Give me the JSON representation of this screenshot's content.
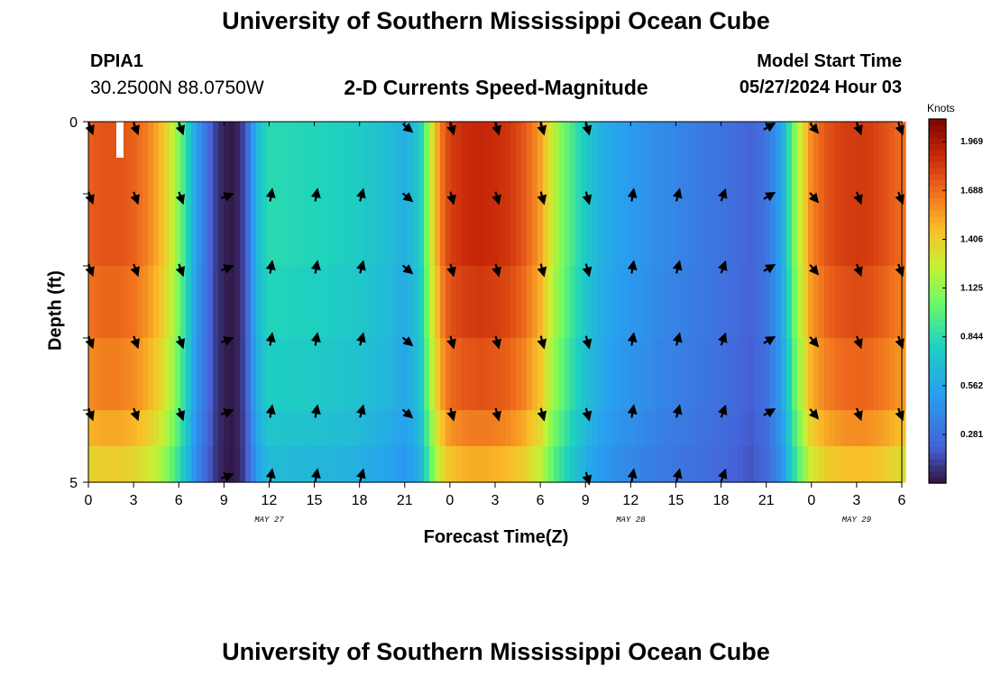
{
  "header": {
    "title": "University of Southern Mississippi Ocean Cube",
    "station": "DPIA1",
    "coords": "30.2500N  88.0750W",
    "subtitle": "2-D Currents Speed-Magnitude",
    "model_start_label": "Model Start Time",
    "model_start_value": "05/27/2024 Hour 03"
  },
  "footer": {
    "title": "University of Southern Mississippi Ocean Cube"
  },
  "chart_data": {
    "type": "heatmap",
    "title": "2-D Currents Speed-Magnitude",
    "xlabel": "Forecast Time(Z)",
    "ylabel": "Depth (ft)",
    "ylim": [
      0,
      5
    ],
    "y_ticks": [
      "0",
      "5"
    ],
    "x_ticks": [
      "0",
      "3",
      "6",
      "9",
      "12",
      "15",
      "18",
      "21",
      "0",
      "3",
      "6",
      "9",
      "12",
      "15",
      "18",
      "21",
      "0",
      "3",
      "6"
    ],
    "date_labels": [
      {
        "label": "MAY 27",
        "at_tick": 4
      },
      {
        "label": "MAY 28",
        "at_tick": 12
      },
      {
        "label": "MAY 29",
        "at_tick": 17
      }
    ],
    "x_range_hours": [
      0,
      54
    ],
    "depth_layers": 5,
    "colorbar": {
      "title": "Knots",
      "ticks": [
        "1.969",
        "1.688",
        "1.406",
        "1.125",
        "0.844",
        "0.562",
        "0.281"
      ],
      "range": [
        0,
        2.1
      ]
    },
    "speed_profile": {
      "hours": [
        0,
        1,
        2,
        3,
        4,
        5,
        6,
        6.5,
        7,
        7.5,
        8,
        8.5,
        9,
        9.5,
        10,
        10.5,
        11,
        11.5,
        12,
        14,
        16,
        18,
        20,
        21,
        22,
        22.5,
        23,
        23.5,
        24,
        25,
        26,
        27,
        28,
        29,
        30,
        31,
        32,
        33,
        34,
        35,
        36,
        38,
        40,
        42,
        44,
        45,
        46,
        46.5,
        47,
        47.5,
        48,
        49,
        50,
        51,
        52,
        53,
        54
      ],
      "knots": [
        1.72,
        1.76,
        1.76,
        1.72,
        1.62,
        1.45,
        1.1,
        0.85,
        0.6,
        0.4,
        0.25,
        0.1,
        0.04,
        0.02,
        0.06,
        0.2,
        0.55,
        0.75,
        0.84,
        0.82,
        0.8,
        0.76,
        0.68,
        0.6,
        0.75,
        1.1,
        1.45,
        1.68,
        1.82,
        1.88,
        1.9,
        1.88,
        1.84,
        1.74,
        1.55,
        1.2,
        0.95,
        0.75,
        0.62,
        0.55,
        0.5,
        0.42,
        0.36,
        0.3,
        0.22,
        0.3,
        0.55,
        0.85,
        1.15,
        1.4,
        1.62,
        1.76,
        1.82,
        1.84,
        1.82,
        1.76,
        1.68
      ]
    },
    "layer_factors": [
      1.0,
      1.0,
      0.97,
      0.93,
      0.87
    ],
    "bottom_row_factor": 0.8,
    "vectors": {
      "hours": [
        0,
        3,
        6,
        9,
        12,
        15,
        18,
        21,
        24,
        27,
        30,
        33,
        36,
        39,
        42,
        45,
        48,
        51,
        54
      ],
      "angles_deg": [
        160,
        160,
        160,
        70,
        10,
        10,
        15,
        130,
        165,
        165,
        165,
        165,
        10,
        15,
        20,
        60,
        140,
        160,
        160
      ],
      "top_row_hours": [
        0,
        3,
        6,
        21,
        24,
        27,
        30,
        33,
        45,
        48,
        51,
        54
      ],
      "bottom_row_hours": [
        9,
        12,
        15,
        18,
        33,
        36,
        39,
        42
      ]
    }
  }
}
